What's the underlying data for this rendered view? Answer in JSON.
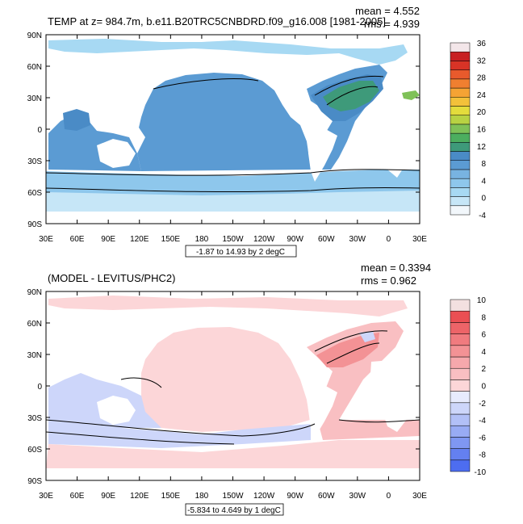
{
  "palettes": {
    "top": [
      "#f2f7fb",
      "#c6e6f7",
      "#a7d9f3",
      "#8ec7ec",
      "#78b3e1",
      "#5b9bd3",
      "#4a8bc6",
      "#3e9a7a",
      "#4cae5f",
      "#7fc158",
      "#b8d243",
      "#e4dc3c",
      "#f3c13a",
      "#f5a334",
      "#f07f30",
      "#e85a2c",
      "#d83326",
      "#c81f22",
      "#f3e6e9"
    ],
    "bottom": [
      "#4d6df0",
      "#6480f0",
      "#7f97f2",
      "#98abf4",
      "#b2c0f7",
      "#cdd6fa",
      "#e7ebfd",
      "#fcd6d8",
      "#f9bfc2",
      "#f6a8ac",
      "#f39295",
      "#f07b7f",
      "#ed6468",
      "#ea4f53",
      "#f3e0e0"
    ]
  },
  "panels": [
    {
      "id": "top",
      "title": "TEMP at z= 984.7m, b.e11.B20TRC5CNBDRD.f09_g16.008 [1981-2005]",
      "stats_mean": "mean = 4.552",
      "stats_rms": "rms = 4.939",
      "lat_ticks": [
        "90N",
        "60N",
        "30N",
        "0",
        "30S",
        "60S",
        "90S"
      ],
      "lon_ticks": [
        "30E",
        "60E",
        "90E",
        "120E",
        "150E",
        "180",
        "150W",
        "120W",
        "90W",
        "60W",
        "30W",
        "0",
        "30E"
      ],
      "contour_info": "-1.87 to 14.93 by 2 degC",
      "colorbar_labels": [
        "36",
        "32",
        "28",
        "24",
        "20",
        "16",
        "12",
        "8",
        "4",
        "0",
        "-4"
      ]
    },
    {
      "id": "bottom",
      "title": "(MODEL - LEVITUS/PHC2)",
      "stats_mean": "mean = 0.3394",
      "stats_rms": "rms = 0.962",
      "lat_ticks": [
        "90N",
        "60N",
        "30N",
        "0",
        "30S",
        "60S",
        "90S"
      ],
      "lon_ticks": [
        "30E",
        "60E",
        "90E",
        "120E",
        "150E",
        "180",
        "150W",
        "120W",
        "90W",
        "60W",
        "30W",
        "0",
        "30E"
      ],
      "contour_info": "-5.834 to 4.649 by 1 degC",
      "colorbar_labels": [
        "10",
        "8",
        "6",
        "4",
        "2",
        "0",
        "-2",
        "-4",
        "-6",
        "-8",
        "-10"
      ]
    }
  ],
  "chart_data": [
    {
      "type": "heatmap",
      "title": "TEMP at z= 984.7m, b.e11.B20TRC5CNBDRD.f09_g16.008 [1981-2005]",
      "mean": 4.552,
      "rms": 4.939,
      "x_ticks": [
        "30E",
        "60E",
        "90E",
        "120E",
        "150E",
        "180",
        "150W",
        "120W",
        "90W",
        "60W",
        "30W",
        "0",
        "30E"
      ],
      "y_ticks": [
        "90N",
        "60N",
        "30N",
        "0",
        "30S",
        "60S",
        "90S"
      ],
      "contour_range": "-1.87 to 14.93 by 2 degC",
      "colorbar_levels": [
        36,
        32,
        28,
        24,
        20,
        16,
        12,
        8,
        4,
        0,
        -4
      ]
    },
    {
      "type": "heatmap",
      "title": "(MODEL - LEVITUS/PHC2)",
      "mean": 0.3394,
      "rms": 0.962,
      "x_ticks": [
        "30E",
        "60E",
        "90E",
        "120E",
        "150E",
        "180",
        "150W",
        "120W",
        "90W",
        "60W",
        "30W",
        "0",
        "30E"
      ],
      "y_ticks": [
        "90N",
        "60N",
        "30N",
        "0",
        "30S",
        "60S",
        "90S"
      ],
      "contour_range": "-5.834 to 4.649 by 1 degC",
      "colorbar_levels": [
        10,
        8,
        6,
        4,
        2,
        0,
        -2,
        -4,
        -6,
        -8,
        -10
      ]
    }
  ]
}
